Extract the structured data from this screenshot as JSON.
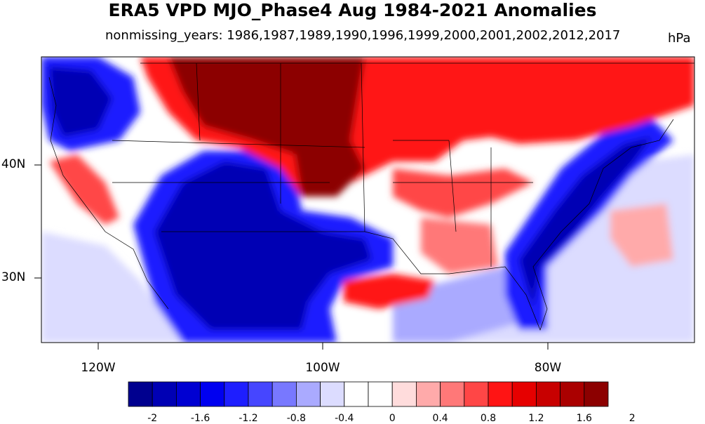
{
  "title": "ERA5 VPD MJO_Phase4 Aug 1984-2021 Anomalies",
  "subtitle": "nonmissing_years: 1986,1987,1989,1990,1996,1999,2000,2001,2002,2012,2017",
  "units": "hPa",
  "latitude_labels": [
    "40N",
    "30N"
  ],
  "longitude_labels": [
    "120W",
    "100W",
    "80W"
  ],
  "colorbar": {
    "colors": [
      "#00008f",
      "#0000b4",
      "#0000d2",
      "#0000f0",
      "#1e1eff",
      "#4646ff",
      "#7878ff",
      "#aaaaff",
      "#dcdcff",
      "#ffffff",
      "#ffffff",
      "#ffdcdc",
      "#ffaaaa",
      "#ff7878",
      "#ff4646",
      "#ff1414",
      "#e60000",
      "#c80000",
      "#aa0000",
      "#8c0000"
    ],
    "tick_labels": [
      "-2",
      "-1.6",
      "-1.2",
      "-0.8",
      "-0.4",
      "0",
      "0.4",
      "0.8",
      "1.2",
      "1.6",
      "2"
    ]
  },
  "map_colors": {
    "deep_red": "#8c0000",
    "red": "#ff1414",
    "light_red": "#ffaaaa",
    "deep_blue": "#0000b4",
    "blue": "#1e1eff",
    "light_blue": "#aaaaff",
    "pale_blue": "#dcdcff"
  }
}
